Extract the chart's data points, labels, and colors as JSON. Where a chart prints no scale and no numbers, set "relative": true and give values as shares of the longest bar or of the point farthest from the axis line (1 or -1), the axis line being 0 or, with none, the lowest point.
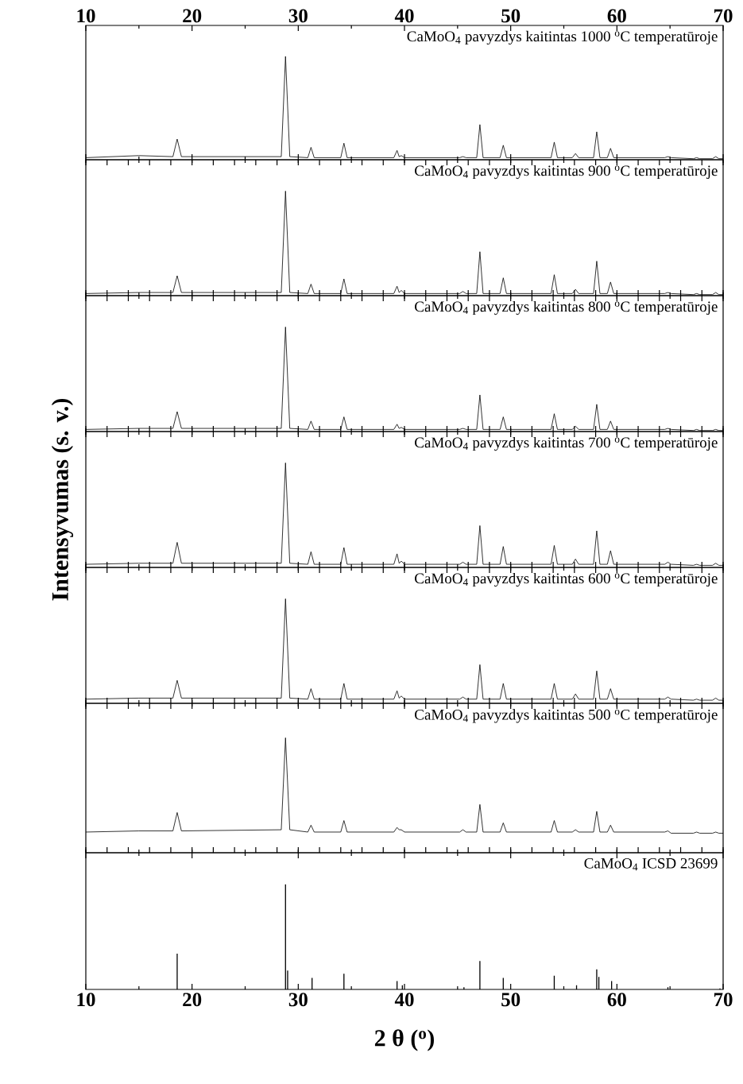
{
  "chart_data": [
    {
      "type": "line",
      "relative": true,
      "title": "CaMoO$_{4}$ pavyzdys kaitintas 1000 $^{o}$C temperatūroje",
      "xlim": [
        10,
        70
      ],
      "xticks": [
        10,
        {
          "value": 15,
          "label": null
        },
        20,
        {
          "value": 25,
          "label": null
        },
        30,
        {
          "value": 35,
          "label": null
        },
        40,
        {
          "value": 45,
          "label": null
        },
        50,
        {
          "value": 55,
          "label": null
        },
        60,
        {
          "value": 65,
          "label": null
        },
        70
      ],
      "tick_labels": "x",
      "x": [
        10,
        15,
        18.2,
        18.6,
        19.0,
        28.4,
        28.8,
        29.2,
        30.9,
        31.2,
        31.5,
        34.0,
        34.3,
        34.6,
        39.0,
        39.3,
        39.5,
        39.7,
        40.0,
        45.2,
        45.5,
        45.8,
        46.8,
        47.1,
        47.4,
        49.0,
        49.3,
        49.6,
        53.8,
        54.1,
        54.4,
        55.8,
        56.1,
        56.4,
        57.8,
        58.1,
        58.4,
        59.1,
        59.4,
        59.7,
        64.5,
        64.8,
        65.1,
        67.2,
        67.5,
        67.8,
        69.0,
        69.3,
        69.6,
        70
      ],
      "series": [
        {
          "color": "#000000",
          "values": [
            0.02,
            0.04,
            0.03,
            0.2,
            0.03,
            0.03,
            1,
            0.03,
            0.02,
            0.12,
            0.02,
            0.02,
            0.16,
            0.02,
            0.02,
            0.09,
            0.03,
            0.04,
            0.02,
            0.02,
            0.03,
            0.02,
            0.02,
            0.34,
            0.02,
            0.02,
            0.14,
            0.02,
            0.02,
            0.17,
            0.02,
            0.02,
            0.06,
            0.02,
            0.02,
            0.27,
            0.02,
            0.02,
            0.11,
            0.02,
            0.02,
            0.03,
            0.02,
            0.01,
            0.02,
            0.01,
            0.01,
            0.03,
            0.01,
            0.01
          ]
        }
      ]
    },
    {
      "type": "line",
      "relative": true,
      "title": "CaMoO$_{4}$ pavyzdys kaitintas 900 $^{o}$C temperatūroje",
      "xlim": [
        10,
        70
      ],
      "xticks": [
        {
          "value": 10,
          "label": null
        },
        {
          "value": 15,
          "label": null
        },
        {
          "value": 20,
          "label": null
        },
        {
          "value": 25,
          "label": null
        },
        {
          "value": 30,
          "label": null
        },
        {
          "value": 35,
          "label": null
        },
        {
          "value": 40,
          "label": null
        },
        {
          "value": 45,
          "label": null
        },
        {
          "value": 50,
          "label": null
        },
        {
          "value": 55,
          "label": null
        },
        {
          "value": 60,
          "label": null
        },
        {
          "value": 65,
          "label": null
        },
        {
          "value": 70,
          "label": null
        }
      ],
      "tick_labels": false,
      "x": [
        10,
        15,
        18.2,
        18.6,
        19.0,
        28.4,
        28.8,
        29.2,
        30.9,
        31.2,
        31.5,
        34.0,
        34.3,
        34.6,
        39.0,
        39.3,
        39.5,
        39.7,
        40.0,
        45.2,
        45.5,
        45.8,
        46.8,
        47.1,
        47.4,
        49.0,
        49.3,
        49.6,
        53.8,
        54.1,
        54.4,
        55.8,
        56.1,
        56.4,
        57.8,
        58.1,
        58.4,
        59.1,
        59.4,
        59.7,
        64.5,
        64.8,
        65.1,
        67.2,
        67.5,
        67.8,
        69.0,
        69.3,
        69.6,
        70
      ],
      "series": [
        {
          "color": "#000000",
          "values": [
            0.02,
            0.03,
            0.03,
            0.19,
            0.03,
            0.03,
            1,
            0.03,
            0.02,
            0.11,
            0.02,
            0.02,
            0.16,
            0.02,
            0.02,
            0.09,
            0.03,
            0.05,
            0.02,
            0.02,
            0.04,
            0.02,
            0.02,
            0.42,
            0.02,
            0.02,
            0.17,
            0.02,
            0.02,
            0.2,
            0.02,
            0.02,
            0.06,
            0.02,
            0.02,
            0.33,
            0.02,
            0.02,
            0.13,
            0.02,
            0.02,
            0.03,
            0.02,
            0.01,
            0.02,
            0.01,
            0.01,
            0.03,
            0.01,
            0.01
          ]
        }
      ]
    },
    {
      "type": "line",
      "relative": true,
      "title": "CaMoO$_{4}$ pavyzdys kaitintas 800 $^{o}$C temperatūroje",
      "xlim": [
        10,
        70
      ],
      "xticks": [
        {
          "value": 10,
          "label": null
        },
        {
          "value": 15,
          "label": null
        },
        {
          "value": 20,
          "label": null
        },
        {
          "value": 25,
          "label": null
        },
        {
          "value": 30,
          "label": null
        },
        {
          "value": 35,
          "label": null
        },
        {
          "value": 40,
          "label": null
        },
        {
          "value": 45,
          "label": null
        },
        {
          "value": 50,
          "label": null
        },
        {
          "value": 55,
          "label": null
        },
        {
          "value": 60,
          "label": null
        },
        {
          "value": 65,
          "label": null
        },
        {
          "value": 70,
          "label": null
        }
      ],
      "tick_labels": false,
      "x": [
        10,
        15,
        18.2,
        18.6,
        19.0,
        28.4,
        28.8,
        29.2,
        30.9,
        31.2,
        31.5,
        34.0,
        34.3,
        34.6,
        39.0,
        39.3,
        39.5,
        39.7,
        40.0,
        45.2,
        45.5,
        45.8,
        46.8,
        47.1,
        47.4,
        49.0,
        49.3,
        49.6,
        53.8,
        54.1,
        54.4,
        55.8,
        56.1,
        56.4,
        57.8,
        58.1,
        58.4,
        59.1,
        59.4,
        59.7,
        64.5,
        64.8,
        65.1,
        67.2,
        67.5,
        67.8,
        69.0,
        69.3,
        69.6,
        70
      ],
      "series": [
        {
          "color": "#000000",
          "values": [
            0.02,
            0.03,
            0.03,
            0.19,
            0.03,
            0.03,
            1,
            0.03,
            0.02,
            0.1,
            0.02,
            0.02,
            0.14,
            0.02,
            0.02,
            0.07,
            0.03,
            0.04,
            0.02,
            0.02,
            0.03,
            0.02,
            0.02,
            0.35,
            0.02,
            0.02,
            0.14,
            0.02,
            0.02,
            0.17,
            0.02,
            0.02,
            0.05,
            0.02,
            0.02,
            0.26,
            0.02,
            0.02,
            0.1,
            0.02,
            0.02,
            0.03,
            0.02,
            0.01,
            0.02,
            0.01,
            0.01,
            0.02,
            0.01,
            0.01
          ]
        }
      ]
    },
    {
      "type": "line",
      "relative": true,
      "title": "CaMoO$_{4}$ pavyzdys kaitintas 700 $^{o}$C temperatūroje",
      "ylabel": "Intensyvumas (s. v.)",
      "xlim": [
        10,
        70
      ],
      "xticks": [
        {
          "value": 10,
          "label": null
        },
        {
          "value": 15,
          "label": null
        },
        {
          "value": 20,
          "label": null
        },
        {
          "value": 25,
          "label": null
        },
        {
          "value": 30,
          "label": null
        },
        {
          "value": 35,
          "label": null
        },
        {
          "value": 40,
          "label": null
        },
        {
          "value": 45,
          "label": null
        },
        {
          "value": 50,
          "label": null
        },
        {
          "value": 55,
          "label": null
        },
        {
          "value": 60,
          "label": null
        },
        {
          "value": 65,
          "label": null
        },
        {
          "value": 70,
          "label": null
        }
      ],
      "tick_labels": false,
      "x": [
        10,
        15,
        18.2,
        18.6,
        19.0,
        28.4,
        28.8,
        29.2,
        30.9,
        31.2,
        31.5,
        34.0,
        34.3,
        34.6,
        39.0,
        39.3,
        39.5,
        39.7,
        40.0,
        45.2,
        45.5,
        45.8,
        46.8,
        47.1,
        47.4,
        49.0,
        49.3,
        49.6,
        53.8,
        54.1,
        54.4,
        55.8,
        56.1,
        56.4,
        57.8,
        58.1,
        58.4,
        59.1,
        59.4,
        59.7,
        64.5,
        64.8,
        65.1,
        67.2,
        67.5,
        67.8,
        69.0,
        69.3,
        69.6,
        70
      ],
      "series": [
        {
          "color": "#000000",
          "values": [
            0.03,
            0.04,
            0.04,
            0.24,
            0.04,
            0.04,
            1,
            0.04,
            0.03,
            0.15,
            0.03,
            0.03,
            0.19,
            0.03,
            0.03,
            0.13,
            0.04,
            0.06,
            0.03,
            0.03,
            0.05,
            0.03,
            0.03,
            0.4,
            0.03,
            0.03,
            0.2,
            0.03,
            0.03,
            0.21,
            0.03,
            0.03,
            0.08,
            0.03,
            0.03,
            0.35,
            0.03,
            0.03,
            0.16,
            0.03,
            0.03,
            0.05,
            0.03,
            0.02,
            0.03,
            0.02,
            0.02,
            0.04,
            0.02,
            0.02
          ]
        }
      ]
    },
    {
      "type": "line",
      "relative": true,
      "title": "CaMoO$_{4}$ pavyzdys kaitintas 600 $^{o}$C temperatūroje",
      "xlim": [
        10,
        70
      ],
      "xticks": [
        {
          "value": 10,
          "label": null
        },
        {
          "value": 15,
          "label": null
        },
        {
          "value": 20,
          "label": null
        },
        {
          "value": 25,
          "label": null
        },
        {
          "value": 30,
          "label": null
        },
        {
          "value": 35,
          "label": null
        },
        {
          "value": 40,
          "label": null
        },
        {
          "value": 45,
          "label": null
        },
        {
          "value": 50,
          "label": null
        },
        {
          "value": 55,
          "label": null
        },
        {
          "value": 60,
          "label": null
        },
        {
          "value": 65,
          "label": null
        },
        {
          "value": 70,
          "label": null
        }
      ],
      "tick_labels": false,
      "x": [
        10,
        15,
        18.2,
        18.6,
        19.0,
        28.4,
        28.8,
        29.2,
        30.9,
        31.2,
        31.5,
        34.0,
        34.3,
        34.6,
        39.0,
        39.3,
        39.5,
        39.7,
        40.0,
        45.2,
        45.5,
        45.8,
        46.8,
        47.1,
        47.4,
        49.0,
        49.3,
        49.6,
        53.8,
        54.1,
        54.4,
        55.8,
        56.1,
        56.4,
        57.8,
        58.1,
        58.4,
        59.1,
        59.4,
        59.7,
        64.5,
        64.8,
        65.1,
        67.2,
        67.5,
        67.8,
        69.0,
        69.3,
        69.6,
        70
      ],
      "series": [
        {
          "color": "#000000",
          "values": [
            0.04,
            0.05,
            0.05,
            0.22,
            0.05,
            0.05,
            1,
            0.05,
            0.04,
            0.14,
            0.04,
            0.04,
            0.19,
            0.04,
            0.04,
            0.12,
            0.05,
            0.07,
            0.04,
            0.04,
            0.06,
            0.04,
            0.04,
            0.37,
            0.04,
            0.04,
            0.19,
            0.04,
            0.04,
            0.19,
            0.04,
            0.04,
            0.09,
            0.04,
            0.04,
            0.31,
            0.04,
            0.04,
            0.14,
            0.04,
            0.04,
            0.06,
            0.04,
            0.03,
            0.04,
            0.03,
            0.03,
            0.05,
            0.03,
            0.03
          ]
        }
      ]
    },
    {
      "type": "line",
      "relative": true,
      "title": "CaMoO$_{4}$ pavyzdys kaitintas 500 $^{o}$C temperatūroje",
      "xlim": [
        10,
        70
      ],
      "xticks": [
        {
          "value": 10,
          "label": null
        },
        {
          "value": 15,
          "label": null
        },
        {
          "value": 20,
          "label": null
        },
        {
          "value": 25,
          "label": null
        },
        {
          "value": 30,
          "label": null
        },
        {
          "value": 35,
          "label": null
        },
        {
          "value": 40,
          "label": null
        },
        {
          "value": 45,
          "label": null
        },
        {
          "value": 50,
          "label": null
        },
        {
          "value": 55,
          "label": null
        },
        {
          "value": 60,
          "label": null
        },
        {
          "value": 65,
          "label": null
        },
        {
          "value": 70,
          "label": null
        }
      ],
      "tick_labels": false,
      "x": [
        10,
        15,
        18.2,
        18.6,
        19.0,
        28.4,
        28.8,
        29.2,
        30.9,
        31.2,
        31.5,
        34.0,
        34.3,
        34.6,
        39.0,
        39.3,
        39.5,
        39.7,
        40.0,
        45.2,
        45.5,
        45.8,
        46.8,
        47.1,
        47.4,
        49.0,
        49.3,
        49.6,
        53.8,
        54.1,
        54.4,
        55.8,
        56.1,
        56.4,
        57.8,
        58.1,
        58.4,
        59.1,
        59.4,
        59.7,
        64.5,
        64.8,
        65.1,
        67.2,
        67.5,
        67.8,
        69.0,
        69.3,
        69.6,
        70
      ],
      "series": [
        {
          "color": "#000000",
          "values": [
            0.18,
            0.19,
            0.19,
            0.35,
            0.19,
            0.2,
            1,
            0.2,
            0.18,
            0.24,
            0.18,
            0.18,
            0.28,
            0.18,
            0.18,
            0.22,
            0.2,
            0.2,
            0.18,
            0.18,
            0.2,
            0.18,
            0.18,
            0.42,
            0.18,
            0.18,
            0.26,
            0.18,
            0.18,
            0.28,
            0.18,
            0.18,
            0.2,
            0.18,
            0.18,
            0.36,
            0.18,
            0.18,
            0.24,
            0.18,
            0.18,
            0.19,
            0.17,
            0.17,
            0.18,
            0.17,
            0.17,
            0.18,
            0.17,
            0.17
          ]
        }
      ]
    },
    {
      "type": "bar",
      "relative": true,
      "title": "CaMoO$_{4}$ ICSD 23699",
      "xlabel": "2 θ ($^{o}$)",
      "xlim": [
        10,
        70
      ],
      "xticks": [
        10,
        {
          "value": 15,
          "label": null
        },
        20,
        {
          "value": 25,
          "label": null
        },
        30,
        {
          "value": 35,
          "label": null
        },
        40,
        {
          "value": 45,
          "label": null
        },
        50,
        {
          "value": 55,
          "label": null
        },
        60,
        {
          "value": 65,
          "label": null
        },
        70
      ],
      "tick_labels": "x",
      "x": [
        18.6,
        28.8,
        29.0,
        31.3,
        34.3,
        39.3,
        39.8,
        45.6,
        47.1,
        49.3,
        54.1,
        56.2,
        58.1,
        58.3,
        59.5,
        64.8,
        69.7
      ],
      "series": [
        {
          "color": "#000000",
          "values": [
            0.34,
            1,
            0.18,
            0.11,
            0.15,
            0.08,
            0.04,
            0.02,
            0.27,
            0.11,
            0.13,
            0.04,
            0.19,
            0.12,
            0.08,
            0.02,
            0.01
          ]
        }
      ]
    }
  ]
}
